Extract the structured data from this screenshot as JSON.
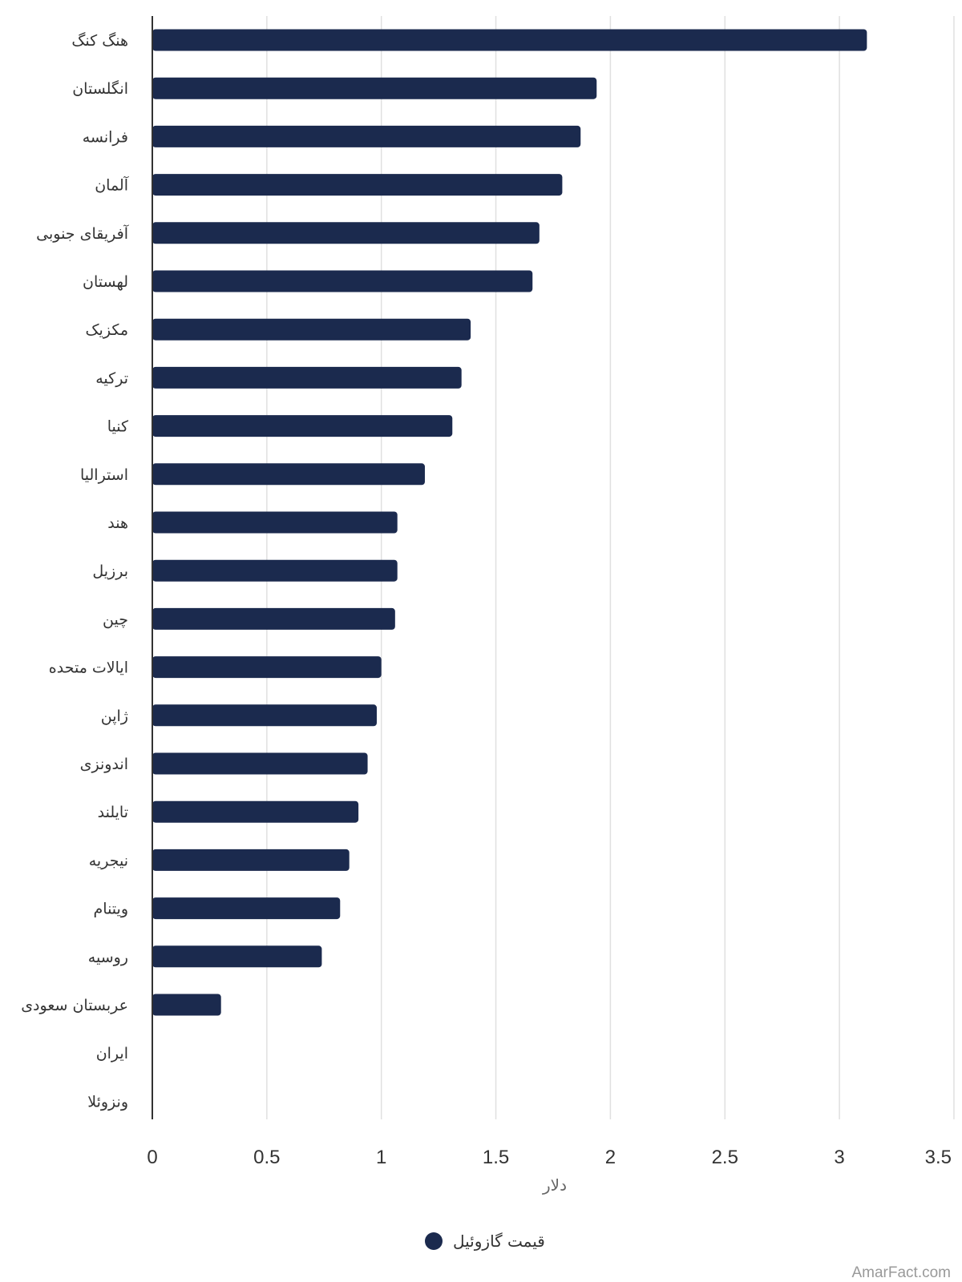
{
  "colors": {
    "bar": "#1b2a4e",
    "grid": "#e0e0e0",
    "axis": "#333333",
    "credit": "#999999"
  },
  "credit": "AmarFact.com",
  "chart_data": {
    "type": "bar",
    "orientation": "horizontal",
    "categories": [
      "هنگ کنگ",
      "انگلستان",
      "فرانسه",
      "آلمان",
      "آفریقای جنوبی",
      "لهستان",
      "مکزیک",
      "ترکیه",
      "کنیا",
      "استرالیا",
      "هند",
      "برزیل",
      "چین",
      "ایالات متحده",
      "ژاپن",
      "اندونزی",
      "تایلند",
      "نیجریه",
      "ویتنام",
      "روسیه",
      "عربستان سعودی",
      "ایران",
      "ونزوئلا"
    ],
    "series": [
      {
        "name": "قیمت گازوئیل",
        "values": [
          3.12,
          1.94,
          1.87,
          1.79,
          1.69,
          1.66,
          1.39,
          1.35,
          1.31,
          1.19,
          1.07,
          1.07,
          1.06,
          1.0,
          0.98,
          0.94,
          0.9,
          0.86,
          0.82,
          0.74,
          0.3,
          0.0,
          0.0
        ]
      }
    ],
    "xlabel": "دلار",
    "ylabel": "",
    "xlim": [
      0,
      3.5
    ],
    "xticks": [
      "0",
      "0.5",
      "1",
      "1.5",
      "2",
      "2.5",
      "3",
      "3.5"
    ],
    "grid": true,
    "legend_position": "bottom-center"
  }
}
